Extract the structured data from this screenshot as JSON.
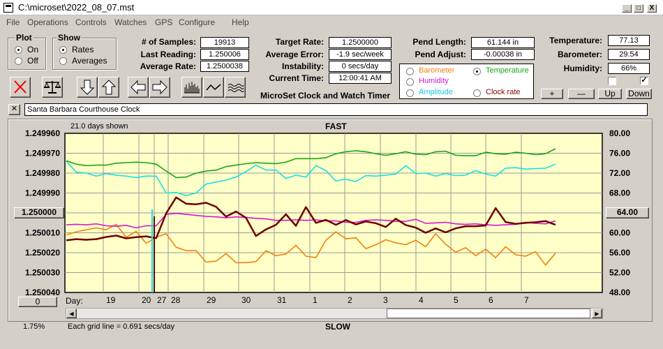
{
  "window": {
    "title": "C:\\microset\\2022_08_07.mst",
    "min": "_",
    "max": "□",
    "close": "X"
  },
  "menu": [
    "File",
    "Operations",
    "Controls",
    "Watches",
    "GPS",
    "Configure",
    "Help"
  ],
  "plot": {
    "title": "Plot",
    "on": "On",
    "off": "Off",
    "selected": "On"
  },
  "show": {
    "title": "Show",
    "rates": "Rates",
    "averages": "Averages",
    "selected": "Rates"
  },
  "stats": {
    "samples_label": "# of Samples:",
    "samples": "19913",
    "last_label": "Last Reading:",
    "last": "1.250006",
    "avg_label": "Average Rate:",
    "avg": "1.2500038",
    "target_label": "Target Rate:",
    "target": "1.2500000",
    "avgerr_label": "Average Error:",
    "avgerr": "-1.9 sec/week",
    "instab_label": "Instability:",
    "instab": "0 secs/day",
    "time_label": "Current Time:",
    "time": "12:00:41 AM",
    "pendlen_label": "Pend Length:",
    "pendlen": "61.144 in",
    "pendadj_label": "Pend Adjust:",
    "pendadj": "-0.00038 in",
    "temp_label": "Temperature:",
    "temp": "77.13",
    "baro_label": "Barometer:",
    "baro": "29.54",
    "hum_label": "Humidity:",
    "hum": "66%"
  },
  "app_title": "MicroSet Clock and Watch Timer",
  "series_select": {
    "barometer": "Barometer",
    "temperature": "Temperature",
    "humidity": "Humidity",
    "amplitude": "Amplitude",
    "clockrate": "Clock rate",
    "selected": "Temperature"
  },
  "scale_buttons": {
    "plus": "+",
    "minus": "—",
    "up": "Up",
    "down": "Down"
  },
  "clock_name": "Santa Barbara Courthouse Clock",
  "clock_close": "✕",
  "chart_labels": {
    "days_shown": "21.0 days shown",
    "fast": "FAST",
    "slow": "SLOW",
    "grid_note": "Each grid line = 0.691 secs/day",
    "pct": "1.75%",
    "day": "Day:",
    "left_btn": "1.250000",
    "right_btn": "64.00",
    "zero_btn": "0"
  },
  "colors": {
    "temperature": "#19a519",
    "amplitude": "#18e0e8",
    "rate": "#6e0000",
    "humidity": "#d418d4",
    "barometer": "#f0820c",
    "plotbg": "#ffffc8"
  },
  "chart_data": {
    "type": "line",
    "yleft": {
      "ticks": [
        "1.249960",
        "1.249970",
        "1.249980",
        "1.249990",
        "1.250000",
        "1.250010",
        "1.250020",
        "1.250030",
        "1.250040"
      ],
      "range": [
        1.24996,
        1.25004
      ]
    },
    "yright": {
      "ticks": [
        "80.00",
        "76.00",
        "72.00",
        "68.00",
        "64.00",
        "60.00",
        "56.00",
        "52.00",
        "48.00"
      ],
      "range": [
        48,
        80
      ]
    },
    "xticks": [
      "19",
      "20",
      "27",
      "28",
      "29",
      "30",
      "31",
      "1",
      "2",
      "3",
      "4",
      "5",
      "6",
      "7"
    ],
    "series": [
      {
        "name": "Temperature",
        "axis": "right",
        "values": [
          74.5,
          73.8,
          73.5,
          73.6,
          73.6,
          74.0,
          74.1,
          74.2,
          74.1,
          73.8,
          72.4,
          71.1,
          71.2,
          72.0,
          72.4,
          72.6,
          73.3,
          73.6,
          73.9,
          74.1,
          74.0,
          73.9,
          74.2,
          74.9,
          74.9,
          74.9,
          75.1,
          75.9,
          76.3,
          76.5,
          76.3,
          75.9,
          75.6,
          75.9,
          76.3,
          75.8,
          75.7,
          76.3,
          76.4,
          75.6,
          75.5,
          75.5,
          76.2,
          75.9,
          75.8,
          76.2,
          76.0,
          75.7,
          75.9,
          76.9
        ]
      },
      {
        "name": "Amplitude",
        "axis": "right",
        "values": [
          74.4,
          72.2,
          72.0,
          71.4,
          71.9,
          71.6,
          71.4,
          71.1,
          71.4,
          71.4,
          68.0,
          68.1,
          67.5,
          68.0,
          69.8,
          70.2,
          70.6,
          71.2,
          72.3,
          73.6,
          72.6,
          72.6,
          70.9,
          71.6,
          71.2,
          73.5,
          72.5,
          70.4,
          70.8,
          70.3,
          71.5,
          71.4,
          71.6,
          71.8,
          73.5,
          71.9,
          72.0,
          71.4,
          71.9,
          71.5,
          71.6,
          72.5,
          71.8,
          71.4,
          73.0,
          73.1,
          72.8,
          72.9,
          73.0,
          73.8
        ]
      },
      {
        "name": "Rate",
        "axis": "left",
        "values": [
          1.2500138,
          1.2500132,
          1.2500135,
          1.2500132,
          1.2500121,
          1.2500114,
          1.2500128,
          1.2500122,
          1.2500118,
          1.2500127,
          1.2500002,
          1.2499922,
          1.2499954,
          1.2499957,
          1.2499949,
          1.2499969,
          1.2500019,
          1.2499993,
          1.2500025,
          1.2500116,
          1.2500083,
          1.250006,
          1.2500007,
          1.2500065,
          1.2499971,
          1.250005,
          1.2500035,
          1.250006,
          1.2500036,
          1.2500058,
          1.2500043,
          1.2500052,
          1.2500071,
          1.2500029,
          1.2500061,
          1.2500074,
          1.25001,
          1.2500078,
          1.2500098,
          1.2500078,
          1.2500067,
          1.2500067,
          1.2500063,
          1.2499976,
          1.2500046,
          1.2500055,
          1.250005,
          1.2500047,
          1.2500041,
          1.250006
        ]
      },
      {
        "name": "Humidity",
        "axis": "right",
        "values": [
          61.6,
          61.7,
          61.6,
          61.8,
          61.4,
          61.3,
          61.5,
          61.0,
          61.4,
          61.4,
          63.7,
          63.9,
          63.7,
          63.5,
          63.3,
          63.2,
          63.0,
          63.2,
          63.1,
          62.9,
          62.8,
          62.5,
          62.5,
          62.6,
          62.5,
          62.6,
          62.4,
          62.4,
          62.1,
          62.1,
          62.5,
          62.6,
          62.5,
          62.3,
          62.3,
          62.7,
          61.9,
          62.0,
          62.1,
          61.8,
          61.7,
          61.8,
          61.6,
          61.5,
          61.6,
          61.7,
          62.1,
          61.9,
          61.8,
          62.4
        ]
      },
      {
        "name": "Barometer",
        "axis": "right",
        "values": [
          59.6,
          60.2,
          60.6,
          61.0,
          60.6,
          61.7,
          59.1,
          60.3,
          57.9,
          59.1,
          59.8,
          57.1,
          56.4,
          56.4,
          54.1,
          54.3,
          55.8,
          54.0,
          54.0,
          54.2,
          56.4,
          55.4,
          55.7,
          57.5,
          55.3,
          55.0,
          58.5,
          60.2,
          58.8,
          59.0,
          56.8,
          57.6,
          58.6,
          58.0,
          57.6,
          58.5,
          57.2,
          59.8,
          57.7,
          56.1,
          57.0,
          55.4,
          56.7,
          55.0,
          57.2,
          55.6,
          55.3,
          56.2,
          53.5,
          55.9
        ]
      }
    ]
  }
}
